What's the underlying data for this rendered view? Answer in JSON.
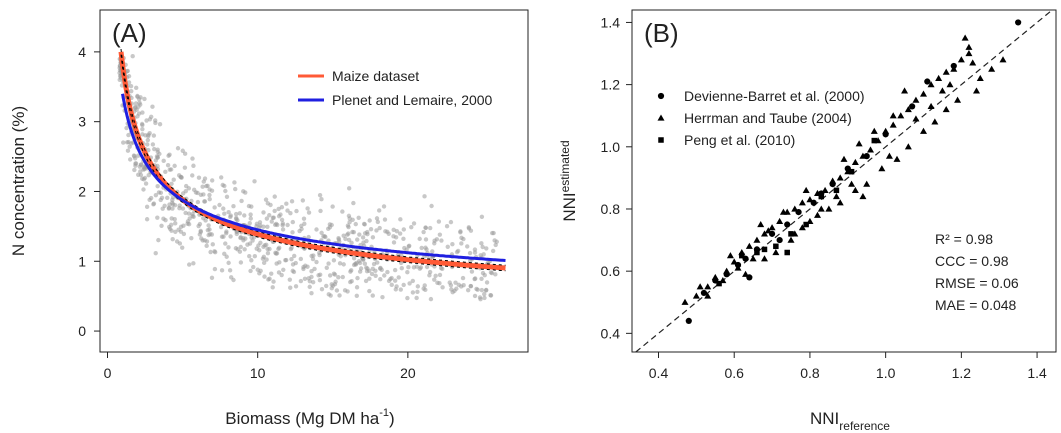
{
  "chart_data": [
    {
      "type": "scatter",
      "panel_label": "(A)",
      "xlabel": "Biomass (Mg DM ha",
      "xlabel_sup": "-1",
      "xlabel_close": ")",
      "ylabel": "N concentration (%)",
      "xlim": [
        -0.5,
        28
      ],
      "ylim": [
        -0.3,
        4.6
      ],
      "xticks": [
        0,
        10,
        20
      ],
      "yticks": [
        0,
        1,
        2,
        3,
        4
      ],
      "grid": false,
      "legend_position": "top-right",
      "colors": {
        "points": "#9a9a9a",
        "maize": "#ff5a36",
        "plenet": "#1f1fe0",
        "ci": "#000000"
      },
      "series": [
        {
          "name": "Maize dataset",
          "kind": "line",
          "a": 3.82,
          "b": 0.44,
          "x_range": [
            1.0,
            26.5
          ]
        },
        {
          "name": "Plenet and Lemaire, 2000",
          "kind": "line",
          "a": 3.4,
          "b": 0.37,
          "x_range": [
            1.0,
            26.5
          ]
        }
      ],
      "scatter_cloud": {
        "n": 900,
        "x_range": [
          0.8,
          26
        ],
        "center_curve": "Maize dataset",
        "spread": 0.35,
        "seed": 7
      }
    },
    {
      "type": "scatter",
      "panel_label": "(B)",
      "xlabel": "NNI",
      "xlabel_sub": "reference",
      "ylabel": "NNI",
      "ylabel_sub": "estimated",
      "xlim": [
        0.33,
        1.45
      ],
      "ylim": [
        0.34,
        1.44
      ],
      "xticks": [
        0.4,
        0.6,
        0.8,
        1.0,
        1.2,
        1.4
      ],
      "yticks": [
        0.4,
        0.6,
        0.8,
        1.0,
        1.2,
        1.4
      ],
      "tick_format": 1,
      "grid": false,
      "legend_position": "top-left",
      "reference_line": "1:1",
      "series": [
        {
          "name": "Devienne-Barret et al. (2000)",
          "marker": "circle",
          "points": [
            [
              0.48,
              0.44
            ],
            [
              0.55,
              0.57
            ],
            [
              0.58,
              0.59
            ],
            [
              0.61,
              0.62
            ],
            [
              0.63,
              0.64
            ],
            [
              0.66,
              0.67
            ],
            [
              0.7,
              0.72
            ],
            [
              0.74,
              0.75
            ],
            [
              0.77,
              0.79
            ],
            [
              0.81,
              0.82
            ],
            [
              0.86,
              0.88
            ],
            [
              0.9,
              0.93
            ],
            [
              0.95,
              0.97
            ],
            [
              1.0,
              1.04
            ],
            [
              1.07,
              1.13
            ],
            [
              1.11,
              1.21
            ],
            [
              1.18,
              1.26
            ],
            [
              1.35,
              1.4
            ],
            [
              0.52,
              0.53
            ],
            [
              0.64,
              0.58
            ],
            [
              0.72,
              0.7
            ],
            [
              0.83,
              0.85
            ]
          ]
        },
        {
          "name": "Herrman and Taube (2004)",
          "marker": "triangle",
          "points": [
            [
              0.47,
              0.5
            ],
            [
              0.5,
              0.52
            ],
            [
              0.53,
              0.55
            ],
            [
              0.55,
              0.58
            ],
            [
              0.58,
              0.6
            ],
            [
              0.6,
              0.63
            ],
            [
              0.62,
              0.66
            ],
            [
              0.64,
              0.68
            ],
            [
              0.66,
              0.7
            ],
            [
              0.68,
              0.72
            ],
            [
              0.7,
              0.74
            ],
            [
              0.72,
              0.76
            ],
            [
              0.74,
              0.79
            ],
            [
              0.76,
              0.8
            ],
            [
              0.78,
              0.82
            ],
            [
              0.8,
              0.83
            ],
            [
              0.82,
              0.85
            ],
            [
              0.84,
              0.86
            ],
            [
              0.86,
              0.89
            ],
            [
              0.88,
              0.9
            ],
            [
              0.9,
              0.92
            ],
            [
              0.92,
              0.95
            ],
            [
              0.94,
              0.97
            ],
            [
              0.96,
              0.99
            ],
            [
              0.98,
              1.02
            ],
            [
              1.0,
              1.05
            ],
            [
              1.02,
              1.07
            ],
            [
              1.04,
              1.1
            ],
            [
              1.06,
              1.12
            ],
            [
              1.08,
              1.15
            ],
            [
              1.1,
              1.17
            ],
            [
              1.12,
              1.2
            ],
            [
              1.14,
              1.22
            ],
            [
              1.16,
              1.24
            ],
            [
              1.18,
              1.25
            ],
            [
              1.2,
              1.28
            ],
            [
              1.22,
              1.3
            ],
            [
              1.25,
              1.22
            ],
            [
              1.28,
              1.25
            ],
            [
              1.31,
              1.28
            ],
            [
              0.63,
              0.59
            ],
            [
              0.68,
              0.64
            ],
            [
              0.75,
              0.7
            ],
            [
              0.8,
              0.76
            ],
            [
              0.85,
              0.8
            ],
            [
              0.88,
              0.82
            ],
            [
              0.92,
              0.86
            ],
            [
              0.95,
              0.88
            ],
            [
              0.99,
              0.93
            ],
            [
              1.03,
              0.96
            ],
            [
              1.06,
              1.0
            ],
            [
              1.1,
              1.05
            ],
            [
              1.13,
              1.08
            ],
            [
              1.16,
              1.12
            ],
            [
              1.19,
              1.15
            ],
            [
              1.21,
              1.35
            ],
            [
              1.22,
              1.32
            ],
            [
              1.23,
              1.27
            ],
            [
              1.05,
              1.18
            ],
            [
              0.97,
              1.05
            ],
            [
              0.93,
              1.01
            ],
            [
              0.89,
              0.96
            ],
            [
              0.79,
              0.86
            ],
            [
              0.73,
              0.79
            ],
            [
              0.69,
              0.73
            ],
            [
              0.65,
              0.64
            ],
            [
              0.61,
              0.61
            ],
            [
              0.57,
              0.57
            ],
            [
              0.53,
              0.52
            ],
            [
              0.51,
              0.55
            ],
            [
              0.59,
              0.65
            ],
            [
              0.67,
              0.75
            ],
            [
              0.71,
              0.66
            ],
            [
              0.76,
              0.72
            ],
            [
              0.82,
              0.78
            ],
            [
              0.87,
              0.84
            ],
            [
              0.91,
              0.88
            ],
            [
              1.01,
              0.97
            ],
            [
              1.08,
              1.09
            ],
            [
              1.12,
              1.13
            ],
            [
              1.15,
              1.18
            ],
            [
              1.17,
              1.2
            ],
            [
              1.24,
              1.18
            ],
            [
              1.02,
              1.1
            ],
            [
              0.94,
              0.84
            ],
            [
              0.78,
              0.74
            ],
            [
              0.83,
              0.8
            ]
          ]
        },
        {
          "name": "Peng et al. (2010)",
          "marker": "square",
          "points": [
            [
              0.56,
              0.56
            ],
            [
              0.62,
              0.65
            ],
            [
              0.66,
              0.66
            ],
            [
              0.71,
              0.68
            ],
            [
              0.75,
              0.72
            ],
            [
              0.79,
              0.75
            ],
            [
              0.83,
              0.84
            ],
            [
              0.87,
              0.86
            ],
            [
              0.91,
              0.92
            ],
            [
              0.97,
              1.02
            ],
            [
              0.74,
              0.66
            ],
            [
              0.68,
              0.67
            ]
          ]
        }
      ],
      "stats": [
        "R² = 0.98",
        "CCC = 0.98",
        "RMSE = 0.06",
        "MAE = 0.048"
      ]
    }
  ]
}
